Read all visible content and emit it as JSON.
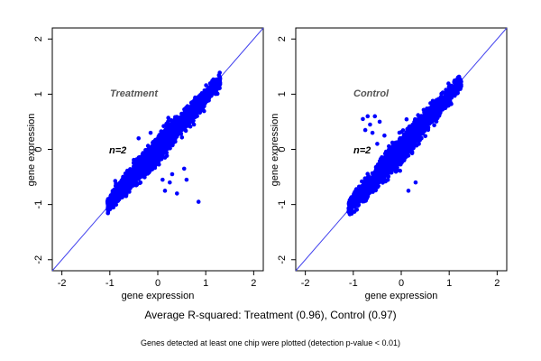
{
  "caption": "Average R-squared: Treatment (0.96), Control (0.97)",
  "footnote": "Genes detected at least one chip were plotted (detection p-value < 0.01)",
  "colors": {
    "points": "#0000ff",
    "diagonal": "#4444ee",
    "axis": "#000000"
  },
  "chart_data": [
    {
      "type": "scatter",
      "title": "",
      "label": "Treatment",
      "n_label": "n=2",
      "xlabel": "gene expression",
      "ylabel": "gene expression",
      "xlim": [
        -2.2,
        2.2
      ],
      "ylim": [
        -2.2,
        2.2
      ],
      "x_ticks": [
        -2,
        -1,
        0,
        1,
        2
      ],
      "y_ticks": [
        -2,
        -1,
        0,
        1,
        2
      ],
      "reference_line": "y = x",
      "grid": false,
      "point_cloud": {
        "x_range": [
          -1.05,
          1.3
        ],
        "slope": 0.95,
        "spread": 0.07,
        "outliers": [
          [
            0.1,
            -0.55
          ],
          [
            0.25,
            -0.6
          ],
          [
            0.55,
            -0.35
          ],
          [
            0.85,
            -0.95
          ],
          [
            0.4,
            -0.8
          ],
          [
            0.3,
            -0.45
          ],
          [
            -0.4,
            0.2
          ],
          [
            -0.15,
            0.3
          ],
          [
            0.15,
            -0.75
          ],
          [
            0.6,
            -0.55
          ]
        ]
      }
    },
    {
      "type": "scatter",
      "title": "",
      "label": "Control",
      "n_label": "n=2",
      "xlabel": "gene expression",
      "ylabel": "gene expression",
      "xlim": [
        -2.2,
        2.2
      ],
      "ylim": [
        -2.2,
        2.2
      ],
      "x_ticks": [
        -2,
        -1,
        0,
        1,
        2
      ],
      "y_ticks": [
        -2,
        -1,
        0,
        1,
        2
      ],
      "reference_line": "y = x",
      "grid": false,
      "point_cloud": {
        "x_range": [
          -1.1,
          1.25
        ],
        "slope": 0.98,
        "spread": 0.07,
        "outliers": [
          [
            -0.8,
            0.55
          ],
          [
            -0.7,
            0.6
          ],
          [
            -0.65,
            0.45
          ],
          [
            -0.55,
            0.6
          ],
          [
            -0.45,
            0.5
          ],
          [
            -0.6,
            0.3
          ],
          [
            -0.75,
            0.35
          ],
          [
            -0.5,
            0.1
          ],
          [
            -0.35,
            0.25
          ],
          [
            0.15,
            -0.75
          ],
          [
            0.3,
            -0.6
          ]
        ]
      }
    }
  ]
}
